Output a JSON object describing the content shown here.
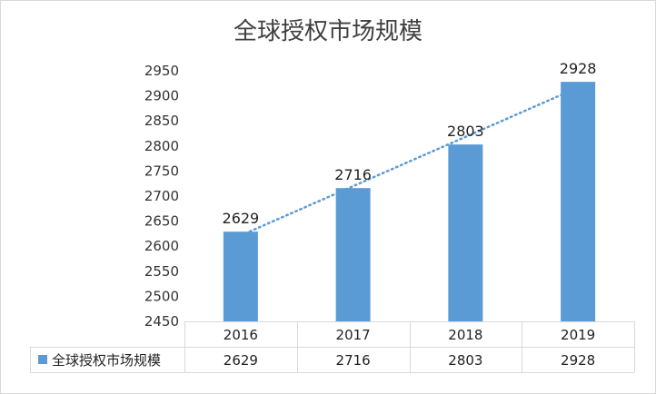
{
  "chart_data": {
    "type": "bar",
    "title": "全球授权市场规模",
    "categories": [
      "2016",
      "2017",
      "2018",
      "2019"
    ],
    "series": [
      {
        "name": "全球授权市场规模",
        "values": [
          2629,
          2716,
          2803,
          2928
        ],
        "color": "#5b9bd5"
      }
    ],
    "trendline": {
      "type": "linear",
      "style": "dotted",
      "color": "#5b9bd5"
    },
    "ylim": [
      2450,
      2950
    ],
    "yticks": [
      2450,
      2500,
      2550,
      2600,
      2650,
      2700,
      2750,
      2800,
      2850,
      2900,
      2950
    ],
    "xlabel": "",
    "ylabel": "",
    "grid": false,
    "data_table": true,
    "data_labels": true
  }
}
